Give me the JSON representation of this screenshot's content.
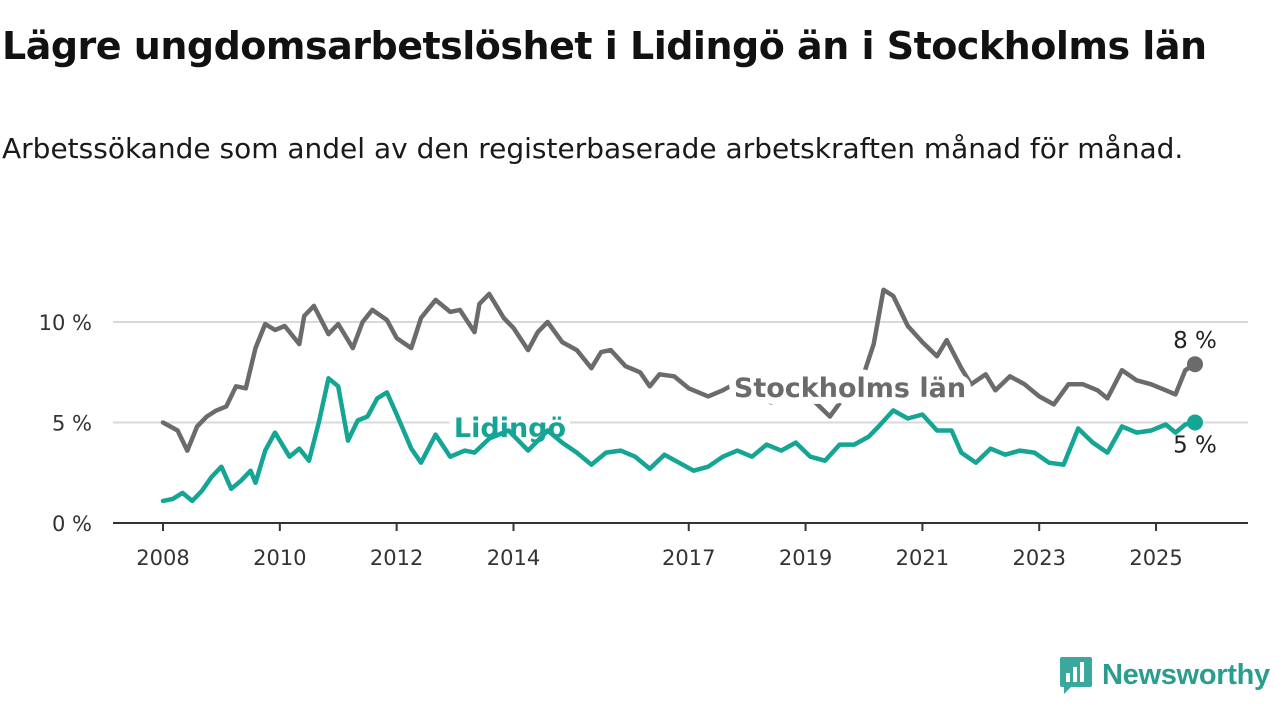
{
  "title": "Lägre ungdomsarbetslöshet i Lidingö än i Stockholms län",
  "subtitle": "Arbetssökande som andel av den registerbaserade arbetskraften månad för månad.",
  "brand": {
    "name": "Newsworthy",
    "icon": "newsworthy-logo-icon",
    "color": "#3aa89c"
  },
  "chart_data": {
    "type": "line",
    "title": "Lägre ungdomsarbetslöshet i Lidingö än i Stockholms län",
    "subtitle": "Arbetssökande som andel av den registerbaserade arbetskraften månad för månad.",
    "xlabel": "",
    "ylabel": "",
    "x_ticks": [
      "2008",
      "2010",
      "2012",
      "2014",
      "2017",
      "2019",
      "2021",
      "2023",
      "2025"
    ],
    "y_ticks": [
      {
        "value": 0,
        "label": "0 %"
      },
      {
        "value": 5,
        "label": "5 %"
      },
      {
        "value": 10,
        "label": "10 %"
      }
    ],
    "xlim": [
      "2008-01",
      "2025-09"
    ],
    "ylim": [
      0,
      12
    ],
    "grid": true,
    "legend": "inline labels",
    "series": [
      {
        "name": "Stockholms län",
        "color": "#6b6b6e",
        "end_label": "8 %",
        "points": [
          [
            "2008-01",
            5.0
          ],
          [
            "2008-04",
            4.6
          ],
          [
            "2008-06",
            3.6
          ],
          [
            "2008-08",
            4.8
          ],
          [
            "2008-10",
            5.3
          ],
          [
            "2008-12",
            5.6
          ],
          [
            "2009-02",
            5.8
          ],
          [
            "2009-04",
            6.8
          ],
          [
            "2009-06",
            6.7
          ],
          [
            "2009-08",
            8.7
          ],
          [
            "2009-10",
            9.9
          ],
          [
            "2009-12",
            9.6
          ],
          [
            "2010-02",
            9.8
          ],
          [
            "2010-05",
            8.9
          ],
          [
            "2010-06",
            10.3
          ],
          [
            "2010-08",
            10.8
          ],
          [
            "2010-11",
            9.4
          ],
          [
            "2011-01",
            9.9
          ],
          [
            "2011-04",
            8.7
          ],
          [
            "2011-06",
            10.0
          ],
          [
            "2011-08",
            10.6
          ],
          [
            "2011-11",
            10.1
          ],
          [
            "2012-01",
            9.2
          ],
          [
            "2012-04",
            8.7
          ],
          [
            "2012-06",
            10.2
          ],
          [
            "2012-09",
            11.1
          ],
          [
            "2012-12",
            10.5
          ],
          [
            "2013-02",
            10.6
          ],
          [
            "2013-05",
            9.5
          ],
          [
            "2013-06",
            10.9
          ],
          [
            "2013-08",
            11.4
          ],
          [
            "2013-11",
            10.2
          ],
          [
            "2014-01",
            9.7
          ],
          [
            "2014-04",
            8.6
          ],
          [
            "2014-06",
            9.5
          ],
          [
            "2014-08",
            10.0
          ],
          [
            "2014-11",
            9.0
          ],
          [
            "2015-02",
            8.6
          ],
          [
            "2015-05",
            7.7
          ],
          [
            "2015-07",
            8.5
          ],
          [
            "2015-09",
            8.6
          ],
          [
            "2015-12",
            7.8
          ],
          [
            "2016-03",
            7.5
          ],
          [
            "2016-05",
            6.8
          ],
          [
            "2016-07",
            7.4
          ],
          [
            "2016-10",
            7.3
          ],
          [
            "2017-01",
            6.7
          ],
          [
            "2017-05",
            6.3
          ],
          [
            "2017-08",
            6.6
          ],
          [
            "2017-11",
            7.0
          ],
          [
            "2018-03",
            6.4
          ],
          [
            "2018-06",
            6.0
          ],
          [
            "2018-09",
            6.3
          ],
          [
            "2018-12",
            6.3
          ],
          [
            "2019-03",
            6.0
          ],
          [
            "2019-06",
            5.3
          ],
          [
            "2019-09",
            6.3
          ],
          [
            "2019-12",
            6.7
          ],
          [
            "2020-03",
            8.9
          ],
          [
            "2020-05",
            11.6
          ],
          [
            "2020-07",
            11.3
          ],
          [
            "2020-10",
            9.8
          ],
          [
            "2021-01",
            9.0
          ],
          [
            "2021-04",
            8.3
          ],
          [
            "2021-06",
            9.1
          ],
          [
            "2021-09",
            7.7
          ],
          [
            "2021-11",
            6.9
          ],
          [
            "2022-02",
            7.4
          ],
          [
            "2022-04",
            6.6
          ],
          [
            "2022-07",
            7.3
          ],
          [
            "2022-10",
            6.9
          ],
          [
            "2023-01",
            6.3
          ],
          [
            "2023-04",
            5.9
          ],
          [
            "2023-07",
            6.9
          ],
          [
            "2023-10",
            6.9
          ],
          [
            "2024-01",
            6.6
          ],
          [
            "2024-03",
            6.2
          ],
          [
            "2024-06",
            7.6
          ],
          [
            "2024-09",
            7.1
          ],
          [
            "2024-12",
            6.9
          ],
          [
            "2025-03",
            6.6
          ],
          [
            "2025-05",
            6.4
          ],
          [
            "2025-07",
            7.6
          ],
          [
            "2025-09",
            7.9
          ]
        ]
      },
      {
        "name": "Lidingö",
        "color": "#14a594",
        "end_label": "5 %",
        "points": [
          [
            "2008-01",
            1.1
          ],
          [
            "2008-03",
            1.2
          ],
          [
            "2008-05",
            1.5
          ],
          [
            "2008-07",
            1.1
          ],
          [
            "2008-09",
            1.6
          ],
          [
            "2008-11",
            2.3
          ],
          [
            "2009-01",
            2.8
          ],
          [
            "2009-03",
            1.7
          ],
          [
            "2009-05",
            2.1
          ],
          [
            "2009-07",
            2.6
          ],
          [
            "2009-08",
            2.0
          ],
          [
            "2009-10",
            3.6
          ],
          [
            "2009-12",
            4.5
          ],
          [
            "2010-03",
            3.3
          ],
          [
            "2010-05",
            3.7
          ],
          [
            "2010-07",
            3.1
          ],
          [
            "2010-09",
            5.0
          ],
          [
            "2010-11",
            7.2
          ],
          [
            "2011-01",
            6.8
          ],
          [
            "2011-03",
            4.1
          ],
          [
            "2011-05",
            5.1
          ],
          [
            "2011-07",
            5.3
          ],
          [
            "2011-09",
            6.2
          ],
          [
            "2011-11",
            6.5
          ],
          [
            "2012-01",
            5.4
          ],
          [
            "2012-04",
            3.7
          ],
          [
            "2012-06",
            3.0
          ],
          [
            "2012-09",
            4.4
          ],
          [
            "2012-12",
            3.3
          ],
          [
            "2013-03",
            3.6
          ],
          [
            "2013-05",
            3.5
          ],
          [
            "2013-08",
            4.2
          ],
          [
            "2013-12",
            4.6
          ],
          [
            "2014-04",
            3.6
          ],
          [
            "2014-08",
            4.6
          ],
          [
            "2014-11",
            4.0
          ],
          [
            "2015-02",
            3.5
          ],
          [
            "2015-05",
            2.9
          ],
          [
            "2015-08",
            3.5
          ],
          [
            "2015-11",
            3.6
          ],
          [
            "2016-02",
            3.3
          ],
          [
            "2016-05",
            2.7
          ],
          [
            "2016-08",
            3.4
          ],
          [
            "2016-11",
            3.0
          ],
          [
            "2017-02",
            2.6
          ],
          [
            "2017-05",
            2.8
          ],
          [
            "2017-08",
            3.3
          ],
          [
            "2017-11",
            3.6
          ],
          [
            "2018-02",
            3.3
          ],
          [
            "2018-05",
            3.9
          ],
          [
            "2018-08",
            3.6
          ],
          [
            "2018-11",
            4.0
          ],
          [
            "2019-02",
            3.3
          ],
          [
            "2019-05",
            3.1
          ],
          [
            "2019-08",
            3.9
          ],
          [
            "2019-11",
            3.9
          ],
          [
            "2020-02",
            4.3
          ],
          [
            "2020-04",
            4.8
          ],
          [
            "2020-07",
            5.6
          ],
          [
            "2020-10",
            5.2
          ],
          [
            "2021-01",
            5.4
          ],
          [
            "2021-04",
            4.6
          ],
          [
            "2021-07",
            4.6
          ],
          [
            "2021-09",
            3.5
          ],
          [
            "2021-12",
            3.0
          ],
          [
            "2022-03",
            3.7
          ],
          [
            "2022-06",
            3.4
          ],
          [
            "2022-09",
            3.6
          ],
          [
            "2022-12",
            3.5
          ],
          [
            "2023-03",
            3.0
          ],
          [
            "2023-06",
            2.9
          ],
          [
            "2023-09",
            4.7
          ],
          [
            "2023-12",
            4.0
          ],
          [
            "2024-03",
            3.5
          ],
          [
            "2024-06",
            4.8
          ],
          [
            "2024-09",
            4.5
          ],
          [
            "2024-12",
            4.6
          ],
          [
            "2025-03",
            4.9
          ],
          [
            "2025-05",
            4.5
          ],
          [
            "2025-07",
            4.9
          ],
          [
            "2025-09",
            5.0
          ]
        ]
      }
    ]
  }
}
